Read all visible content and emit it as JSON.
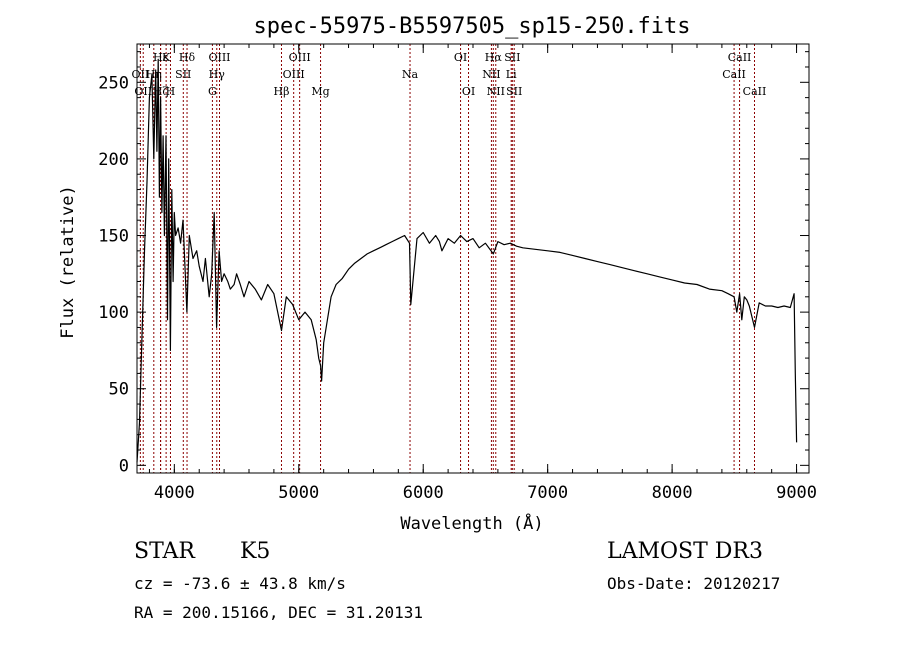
{
  "chart_data": {
    "type": "line",
    "title": "spec-55975-B5597505_sp15-250.fits",
    "xlabel": "Wavelength (Å)",
    "ylabel": "Flux (relative)",
    "xlim": [
      3700,
      9100
    ],
    "ylim": [
      -5,
      275
    ],
    "x_ticks": [
      4000,
      5000,
      6000,
      7000,
      8000,
      9000
    ],
    "y_ticks": [
      0,
      50,
      100,
      150,
      200,
      250
    ],
    "grid": false,
    "line_color": "#000000",
    "marker_color": "#8b0000",
    "series": [
      {
        "name": "flux",
        "x": [
          3700,
          3720,
          3740,
          3760,
          3780,
          3800,
          3820,
          3835,
          3850,
          3860,
          3870,
          3880,
          3890,
          3900,
          3910,
          3920,
          3933,
          3945,
          3955,
          3968,
          3980,
          3990,
          4000,
          4010,
          4030,
          4050,
          4070,
          4101,
          4120,
          4150,
          4180,
          4200,
          4230,
          4250,
          4280,
          4300,
          4320,
          4340,
          4360,
          4380,
          4400,
          4430,
          4450,
          4480,
          4500,
          4530,
          4560,
          4600,
          4650,
          4700,
          4750,
          4800,
          4861,
          4900,
          4950,
          5000,
          5050,
          5100,
          5140,
          5160,
          5175,
          5183,
          5200,
          5230,
          5260,
          5300,
          5350,
          5400,
          5450,
          5500,
          5550,
          5600,
          5650,
          5700,
          5750,
          5800,
          5850,
          5890,
          5900,
          5950,
          6000,
          6050,
          6100,
          6130,
          6150,
          6200,
          6250,
          6300,
          6350,
          6400,
          6450,
          6500,
          6563,
          6600,
          6650,
          6700,
          6750,
          6800,
          6900,
          7000,
          7100,
          7200,
          7300,
          7400,
          7500,
          7600,
          7700,
          7800,
          7900,
          8000,
          8100,
          8200,
          8300,
          8400,
          8450,
          8498,
          8520,
          8542,
          8560,
          8580,
          8600,
          8620,
          8662,
          8700,
          8750,
          8800,
          8850,
          8900,
          8950,
          8980,
          8990,
          9000
        ],
        "values": [
          2,
          28,
          85,
          140,
          185,
          240,
          255,
          200,
          258,
          205,
          265,
          175,
          240,
          165,
          215,
          150,
          215,
          95,
          200,
          75,
          180,
          120,
          165,
          150,
          155,
          145,
          160,
          100,
          150,
          135,
          140,
          130,
          120,
          135,
          110,
          125,
          165,
          90,
          140,
          120,
          125,
          120,
          115,
          118,
          125,
          118,
          110,
          120,
          115,
          108,
          118,
          112,
          88,
          110,
          105,
          95,
          100,
          95,
          82,
          70,
          65,
          55,
          80,
          95,
          110,
          118,
          122,
          128,
          132,
          135,
          138,
          140,
          142,
          144,
          146,
          148,
          150,
          145,
          105,
          148,
          152,
          145,
          150,
          146,
          140,
          148,
          145,
          150,
          146,
          148,
          142,
          145,
          138,
          146,
          144,
          145,
          143,
          142,
          141,
          140,
          139,
          137,
          135,
          133,
          131,
          129,
          127,
          125,
          123,
          121,
          119,
          118,
          115,
          114,
          112,
          110,
          100,
          112,
          95,
          110,
          108,
          104,
          90,
          106,
          104,
          104,
          103,
          104,
          103,
          112,
          60,
          15
        ]
      }
    ],
    "lines": [
      {
        "name": "Hε",
        "wavelength": 3890,
        "row": 1
      },
      {
        "name": "OII",
        "wavelength": 3727,
        "row": 2
      },
      {
        "name": "OII",
        "wavelength": 3750,
        "row": 3
      },
      {
        "name": "Hη",
        "wavelength": 3835,
        "row": 2
      },
      {
        "name": "K",
        "wavelength": 3934,
        "row": 1
      },
      {
        "name": "H",
        "wavelength": 3969,
        "row": 3
      },
      {
        "name": "Hζ",
        "wavelength": 3889,
        "row": 3
      },
      {
        "name": "SII",
        "wavelength": 4072,
        "row": 2
      },
      {
        "name": "Hδ",
        "wavelength": 4102,
        "row": 1
      },
      {
        "name": "G",
        "wavelength": 4306,
        "row": 3
      },
      {
        "name": "Hγ",
        "wavelength": 4341,
        "row": 2
      },
      {
        "name": "OIII",
        "wavelength": 4363,
        "row": 1
      },
      {
        "name": "Hβ",
        "wavelength": 4861,
        "row": 3
      },
      {
        "name": "OIII",
        "wavelength": 4959,
        "row": 2
      },
      {
        "name": "OIII",
        "wavelength": 5007,
        "row": 1
      },
      {
        "name": "Mg",
        "wavelength": 5175,
        "row": 3
      },
      {
        "name": "Na",
        "wavelength": 5894,
        "row": 2
      },
      {
        "name": "OI",
        "wavelength": 6300,
        "row": 1
      },
      {
        "name": "OI",
        "wavelength": 6364,
        "row": 3
      },
      {
        "name": "NII",
        "wavelength": 6548,
        "row": 2
      },
      {
        "name": "Hα",
        "wavelength": 6563,
        "row": 1
      },
      {
        "name": "NII",
        "wavelength": 6583,
        "row": 3
      },
      {
        "name": "Li",
        "wavelength": 6707,
        "row": 2
      },
      {
        "name": "SII",
        "wavelength": 6716,
        "row": 1
      },
      {
        "name": "SII",
        "wavelength": 6731,
        "row": 3
      },
      {
        "name": "CaII",
        "wavelength": 8498,
        "row": 2
      },
      {
        "name": "CaII",
        "wavelength": 8542,
        "row": 1
      },
      {
        "name": "CaII",
        "wavelength": 8662,
        "row": 3
      }
    ]
  },
  "info": {
    "class_label": "STAR",
    "subclass_label": "K5",
    "survey": "LAMOST DR3",
    "redshift": "cz = -73.6 ± 43.8 km/s",
    "obs_date": "Obs-Date: 20120217",
    "coords": "RA = 200.15166, DEC =  31.20131"
  }
}
